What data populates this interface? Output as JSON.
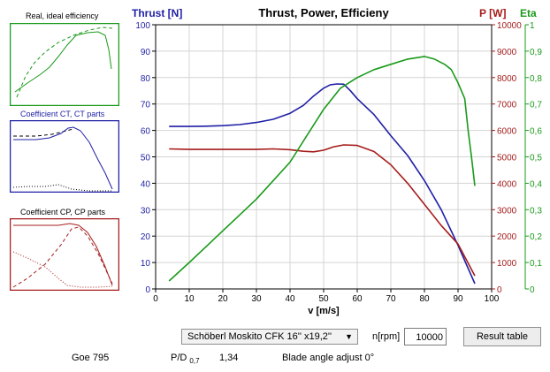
{
  "chart_data": {
    "type": "line",
    "title": "Thrust, Power, Efficieny",
    "xlabel": "v [m/s]",
    "xlim": [
      0,
      100
    ],
    "x_ticks": [
      "0",
      "10",
      "20",
      "30",
      "40",
      "50",
      "60",
      "70",
      "80",
      "90",
      "100"
    ],
    "axes": {
      "thrust": {
        "label": "Thrust [N]",
        "color": "#1f1fa6",
        "lim": [
          0,
          100
        ],
        "ticks": [
          "0",
          "10",
          "20",
          "30",
          "40",
          "50",
          "60",
          "70",
          "80",
          "90",
          "100"
        ]
      },
      "power": {
        "label": "P [W]",
        "color": "#a61c1c",
        "lim": [
          0,
          10000
        ],
        "ticks": [
          "0",
          "1000",
          "2000",
          "3000",
          "4000",
          "5000",
          "6000",
          "7000",
          "8000",
          "9000",
          "10000"
        ]
      },
      "eta": {
        "label": "Eta",
        "color": "#1a9a1a",
        "lim": [
          0,
          1
        ],
        "ticks": [
          "0",
          "0,1",
          "0,2",
          "0,3",
          "0,4",
          "0,5",
          "0,6",
          "0,7",
          "0,8",
          "0,9",
          "1"
        ]
      }
    },
    "grid": true,
    "series": [
      {
        "axis": "thrust",
        "color": "#1f1fa6",
        "x": [
          4,
          10,
          15,
          20,
          25,
          30,
          35,
          40,
          44,
          47,
          50,
          52,
          54,
          56,
          58,
          60,
          65,
          70,
          75,
          80,
          85,
          90,
          95
        ],
        "y": [
          61.5,
          61.5,
          61.6,
          61.8,
          62.2,
          63.0,
          64.2,
          66.5,
          69.5,
          73.0,
          76.0,
          77.3,
          77.6,
          77.5,
          75.0,
          72.0,
          66.0,
          58.0,
          50.5,
          41.0,
          30.0,
          16.5,
          2.0
        ]
      },
      {
        "axis": "power",
        "color": "#a61c1c",
        "x": [
          4,
          10,
          15,
          20,
          25,
          30,
          35,
          40,
          44,
          47,
          50,
          53,
          56,
          60,
          65,
          70,
          75,
          80,
          85,
          90,
          95
        ],
        "y": [
          5300,
          5280,
          5280,
          5280,
          5280,
          5280,
          5300,
          5270,
          5210,
          5190,
          5250,
          5380,
          5450,
          5430,
          5200,
          4700,
          4000,
          3200,
          2400,
          1700,
          500
        ]
      },
      {
        "axis": "eta",
        "color": "#1a9a1a",
        "x": [
          4,
          10,
          15,
          20,
          25,
          30,
          35,
          40,
          45,
          50,
          55,
          60,
          65,
          70,
          75,
          80,
          83,
          86,
          88,
          90,
          92,
          93,
          94,
          95
        ],
        "y": [
          0.03,
          0.1,
          0.16,
          0.22,
          0.28,
          0.34,
          0.41,
          0.48,
          0.58,
          0.68,
          0.76,
          0.8,
          0.83,
          0.85,
          0.87,
          0.88,
          0.87,
          0.85,
          0.83,
          0.78,
          0.72,
          0.6,
          0.5,
          0.39
        ]
      }
    ]
  },
  "mini_charts": [
    {
      "title": "Real, ideal efficiency",
      "title_color": "#000000",
      "line_color": "#1a9a1a",
      "border": "#1a9a1a"
    },
    {
      "title": "Coefficient CT, CT parts",
      "title_color": "#1f1fa6",
      "line_color": "#1f1fa6",
      "border": "#1f1fa6"
    },
    {
      "title": "Coefficient CP, CP parts",
      "title_color": "#000000",
      "line_color": "#a61c1c",
      "border": "#a61c1c"
    }
  ],
  "controls": {
    "propeller_select": "Schöberl Moskito CFK 16'' x19,2''",
    "rpm_label": "n[rpm]",
    "rpm_value": "10000",
    "result_button": "Result table",
    "motor_label": "Goe 795",
    "pd_label": "P/D",
    "pd_subscript": "0,7",
    "pd_value": "1,34",
    "blade_angle": "Blade angle adjust 0°"
  }
}
